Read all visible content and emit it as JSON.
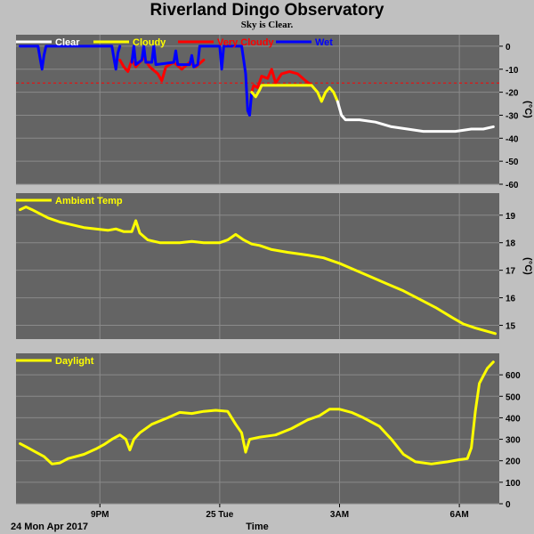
{
  "header": {
    "title": "Riverland Dingo Observatory",
    "subtitle": "Sky is Clear."
  },
  "footer": {
    "date_label": "24 Mon Apr 2017",
    "xlabel": "Time"
  },
  "colors": {
    "background": "#c0c0c0",
    "plot_bg": "#646464",
    "grid": "#8a8a8a",
    "clear": "#ffffff",
    "cloudy": "#ffff00",
    "very_cloudy": "#ff0000",
    "wet": "#0000ff",
    "threshold": "#ff0000"
  },
  "chart_data": [
    {
      "id": "sky",
      "type": "line",
      "title": "",
      "ylabel": "(°C)",
      "ylim": [
        -60,
        5
      ],
      "yticks": [
        0,
        -10,
        -20,
        -30,
        -40,
        -50,
        -60
      ],
      "xlim": [
        18.9,
        31.0
      ],
      "xticks": [
        {
          "x": 21,
          "label": "9PM"
        },
        {
          "x": 24,
          "label": "25 Tue"
        },
        {
          "x": 27,
          "label": "3AM"
        },
        {
          "x": 30,
          "label": "6AM"
        }
      ],
      "threshold": -16,
      "legend": [
        "Clear",
        "Cloudy",
        "Very Cloudy",
        "Wet"
      ],
      "grid": true,
      "series": [
        {
          "name": "Wet",
          "color": "wet",
          "points": [
            [
              19.0,
              0
            ],
            [
              19.45,
              0
            ],
            [
              19.5,
              -5
            ],
            [
              19.55,
              -10
            ],
            [
              19.6,
              -4
            ],
            [
              19.65,
              0
            ],
            [
              21.3,
              0
            ],
            [
              21.35,
              -5
            ],
            [
              21.4,
              -10
            ],
            [
              21.45,
              -3
            ],
            [
              21.5,
              0
            ]
          ]
        },
        {
          "name": "Very Cloudy",
          "color": "very_cloudy",
          "points": [
            [
              21.5,
              -6
            ],
            [
              21.6,
              -9
            ],
            [
              21.7,
              -11
            ],
            [
              21.8,
              -6
            ],
            [
              21.9,
              -9
            ],
            [
              22.1,
              -5
            ],
            [
              22.25,
              -9
            ],
            [
              22.45,
              -12
            ],
            [
              22.55,
              -15
            ],
            [
              22.65,
              -9
            ],
            [
              22.85,
              -7
            ],
            [
              23.05,
              -10
            ],
            [
              23.25,
              -7
            ],
            [
              23.4,
              -9
            ],
            [
              23.6,
              -6
            ]
          ]
        },
        {
          "name": "Wet",
          "color": "wet",
          "points": [
            [
              21.8,
              -7
            ],
            [
              21.85,
              0
            ],
            [
              21.9,
              -8
            ],
            [
              22.05,
              -6
            ],
            [
              22.1,
              0
            ],
            [
              22.15,
              -7
            ],
            [
              22.3,
              -7
            ],
            [
              22.35,
              0
            ],
            [
              22.4,
              -8
            ],
            [
              22.85,
              -7
            ],
            [
              22.9,
              -2
            ],
            [
              22.95,
              -8
            ],
            [
              23.25,
              -8
            ],
            [
              23.3,
              -4
            ],
            [
              23.35,
              -9
            ],
            [
              23.45,
              -8
            ],
            [
              23.5,
              0
            ],
            [
              24.0,
              0
            ],
            [
              24.05,
              -10
            ],
            [
              24.1,
              0
            ],
            [
              24.55,
              0
            ],
            [
              24.6,
              -6
            ],
            [
              24.65,
              -12
            ],
            [
              24.7,
              -28
            ],
            [
              24.75,
              -30
            ],
            [
              24.8,
              -20
            ]
          ]
        },
        {
          "name": "Very Cloudy",
          "color": "very_cloudy",
          "points": [
            [
              24.8,
              -20
            ],
            [
              24.85,
              -17
            ],
            [
              24.95,
              -18
            ],
            [
              25.05,
              -13
            ],
            [
              25.2,
              -14
            ],
            [
              25.3,
              -10
            ],
            [
              25.4,
              -16
            ],
            [
              25.55,
              -12
            ],
            [
              25.75,
              -11
            ],
            [
              25.95,
              -12
            ],
            [
              26.15,
              -15
            ],
            [
              26.3,
              -17
            ]
          ]
        },
        {
          "name": "Cloudy",
          "color": "cloudy",
          "points": [
            [
              24.8,
              -20
            ],
            [
              24.9,
              -22
            ],
            [
              25.0,
              -19
            ],
            [
              25.05,
              -17
            ],
            [
              26.3,
              -17
            ],
            [
              26.45,
              -20
            ],
            [
              26.55,
              -24
            ],
            [
              26.65,
              -20
            ],
            [
              26.75,
              -18
            ],
            [
              26.85,
              -20
            ],
            [
              26.95,
              -24
            ]
          ]
        },
        {
          "name": "Clear",
          "color": "clear",
          "points": [
            [
              26.95,
              -24
            ],
            [
              27.05,
              -30
            ],
            [
              27.15,
              -32
            ],
            [
              27.5,
              -32
            ],
            [
              27.9,
              -33
            ],
            [
              28.3,
              -35
            ],
            [
              28.7,
              -36
            ],
            [
              29.1,
              -37
            ],
            [
              29.5,
              -37
            ],
            [
              29.9,
              -37
            ],
            [
              30.3,
              -36
            ],
            [
              30.6,
              -36
            ],
            [
              30.85,
              -35
            ]
          ]
        }
      ]
    },
    {
      "id": "ambient",
      "type": "line",
      "title": "",
      "ylabel": "(°C)",
      "ylim": [
        14.5,
        19.8
      ],
      "yticks": [
        19,
        18,
        17,
        16,
        15
      ],
      "xlim": [
        18.9,
        31.0
      ],
      "legend": [
        "Ambient Temp"
      ],
      "grid": true,
      "series": [
        {
          "name": "Ambient Temp",
          "color": "cloudy",
          "points": [
            [
              19.0,
              19.2
            ],
            [
              19.15,
              19.3
            ],
            [
              19.3,
              19.2
            ],
            [
              19.5,
              19.05
            ],
            [
              19.7,
              18.9
            ],
            [
              20.0,
              18.75
            ],
            [
              20.3,
              18.65
            ],
            [
              20.6,
              18.55
            ],
            [
              20.9,
              18.5
            ],
            [
              21.2,
              18.45
            ],
            [
              21.4,
              18.5
            ],
            [
              21.6,
              18.4
            ],
            [
              21.8,
              18.4
            ],
            [
              21.9,
              18.8
            ],
            [
              22.0,
              18.35
            ],
            [
              22.2,
              18.1
            ],
            [
              22.5,
              18.0
            ],
            [
              22.8,
              18.0
            ],
            [
              23.0,
              18.0
            ],
            [
              23.3,
              18.05
            ],
            [
              23.6,
              18.0
            ],
            [
              24.0,
              18.0
            ],
            [
              24.2,
              18.1
            ],
            [
              24.4,
              18.3
            ],
            [
              24.6,
              18.1
            ],
            [
              24.8,
              17.95
            ],
            [
              25.0,
              17.9
            ],
            [
              25.3,
              17.75
            ],
            [
              25.7,
              17.65
            ],
            [
              26.2,
              17.55
            ],
            [
              26.6,
              17.45
            ],
            [
              27.0,
              17.25
            ],
            [
              27.4,
              17.0
            ],
            [
              27.8,
              16.75
            ],
            [
              28.2,
              16.5
            ],
            [
              28.6,
              16.25
            ],
            [
              29.0,
              15.95
            ],
            [
              29.4,
              15.65
            ],
            [
              29.8,
              15.3
            ],
            [
              30.1,
              15.05
            ],
            [
              30.4,
              14.9
            ],
            [
              30.65,
              14.8
            ],
            [
              30.9,
              14.7
            ]
          ]
        }
      ]
    },
    {
      "id": "daylight",
      "type": "line",
      "title": "",
      "ylabel": "",
      "ylim": [
        0,
        700
      ],
      "yticks": [
        600,
        500,
        400,
        300,
        200,
        100,
        0
      ],
      "xlim": [
        18.9,
        31.0
      ],
      "legend": [
        "Daylight"
      ],
      "grid": true,
      "series": [
        {
          "name": "Daylight",
          "color": "cloudy",
          "points": [
            [
              19.0,
              280
            ],
            [
              19.2,
              260
            ],
            [
              19.4,
              240
            ],
            [
              19.6,
              220
            ],
            [
              19.8,
              185
            ],
            [
              20.0,
              190
            ],
            [
              20.2,
              210
            ],
            [
              20.6,
              230
            ],
            [
              20.9,
              255
            ],
            [
              21.1,
              275
            ],
            [
              21.3,
              300
            ],
            [
              21.5,
              320
            ],
            [
              21.65,
              300
            ],
            [
              21.75,
              250
            ],
            [
              21.85,
              300
            ],
            [
              22.0,
              330
            ],
            [
              22.3,
              370
            ],
            [
              22.7,
              400
            ],
            [
              23.0,
              425
            ],
            [
              23.3,
              420
            ],
            [
              23.6,
              430
            ],
            [
              23.9,
              435
            ],
            [
              24.2,
              430
            ],
            [
              24.4,
              370
            ],
            [
              24.55,
              330
            ],
            [
              24.65,
              240
            ],
            [
              24.75,
              300
            ],
            [
              25.0,
              310
            ],
            [
              25.4,
              320
            ],
            [
              25.8,
              350
            ],
            [
              26.2,
              390
            ],
            [
              26.5,
              410
            ],
            [
              26.75,
              440
            ],
            [
              27.0,
              440
            ],
            [
              27.3,
              425
            ],
            [
              27.6,
              400
            ],
            [
              28.0,
              360
            ],
            [
              28.3,
              300
            ],
            [
              28.6,
              230
            ],
            [
              28.9,
              195
            ],
            [
              29.3,
              185
            ],
            [
              29.7,
              195
            ],
            [
              30.0,
              205
            ],
            [
              30.2,
              210
            ],
            [
              30.3,
              260
            ],
            [
              30.4,
              430
            ],
            [
              30.5,
              560
            ],
            [
              30.7,
              630
            ],
            [
              30.85,
              660
            ]
          ]
        }
      ]
    }
  ]
}
